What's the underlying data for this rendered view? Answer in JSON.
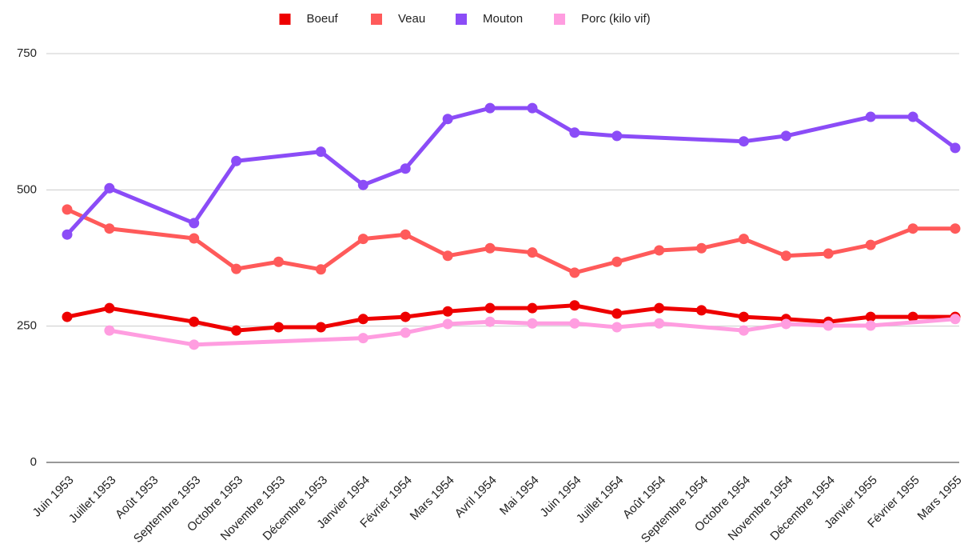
{
  "chart_data": {
    "type": "line",
    "categories": [
      "Juin 1953",
      "Juillet 1953",
      "Août 1953",
      "Septembre 1953",
      "Octobre 1953",
      "Novembre 1953",
      "Décembre 1953",
      "Janvier 1954",
      "Février 1954",
      "Mars 1954",
      "Avril 1954",
      "Mai 1954",
      "Juin 1954",
      "Juillet 1954",
      "Août 1954",
      "Septembre 1954",
      "Octobre 1954",
      "Novembre 1954",
      "Décembre 1954",
      "Janvier 1955",
      "Février 1955",
      "Mars 1955"
    ],
    "series": [
      {
        "name": "Boeuf",
        "color": "#ee0000",
        "values": [
          267,
          283,
          null,
          258,
          242,
          248,
          248,
          263,
          267,
          277,
          283,
          283,
          288,
          273,
          283,
          279,
          267,
          263,
          258,
          267,
          267,
          267
        ]
      },
      {
        "name": "Veau",
        "color": "#ff5a5a",
        "values": [
          464,
          429,
          null,
          411,
          355,
          368,
          354,
          410,
          418,
          379,
          393,
          385,
          348,
          368,
          389,
          393,
          410,
          379,
          383,
          399,
          429,
          429
        ]
      },
      {
        "name": "Mouton",
        "color": "#8b4cf7",
        "values": [
          418,
          503,
          null,
          439,
          553,
          null,
          570,
          509,
          539,
          630,
          650,
          650,
          605,
          599,
          null,
          null,
          589,
          599,
          null,
          634,
          634,
          577
        ]
      },
      {
        "name": "Porc (kilo vif)",
        "color": "#ff9de0",
        "values": [
          null,
          242,
          null,
          216,
          null,
          null,
          null,
          228,
          238,
          254,
          258,
          255,
          255,
          248,
          255,
          null,
          242,
          254,
          251,
          251,
          null,
          263
        ]
      }
    ],
    "ylim": [
      0,
      750
    ],
    "yticks": [
      0,
      250,
      500,
      750
    ],
    "grid": true,
    "legend": "top",
    "connect_gaps": true
  }
}
